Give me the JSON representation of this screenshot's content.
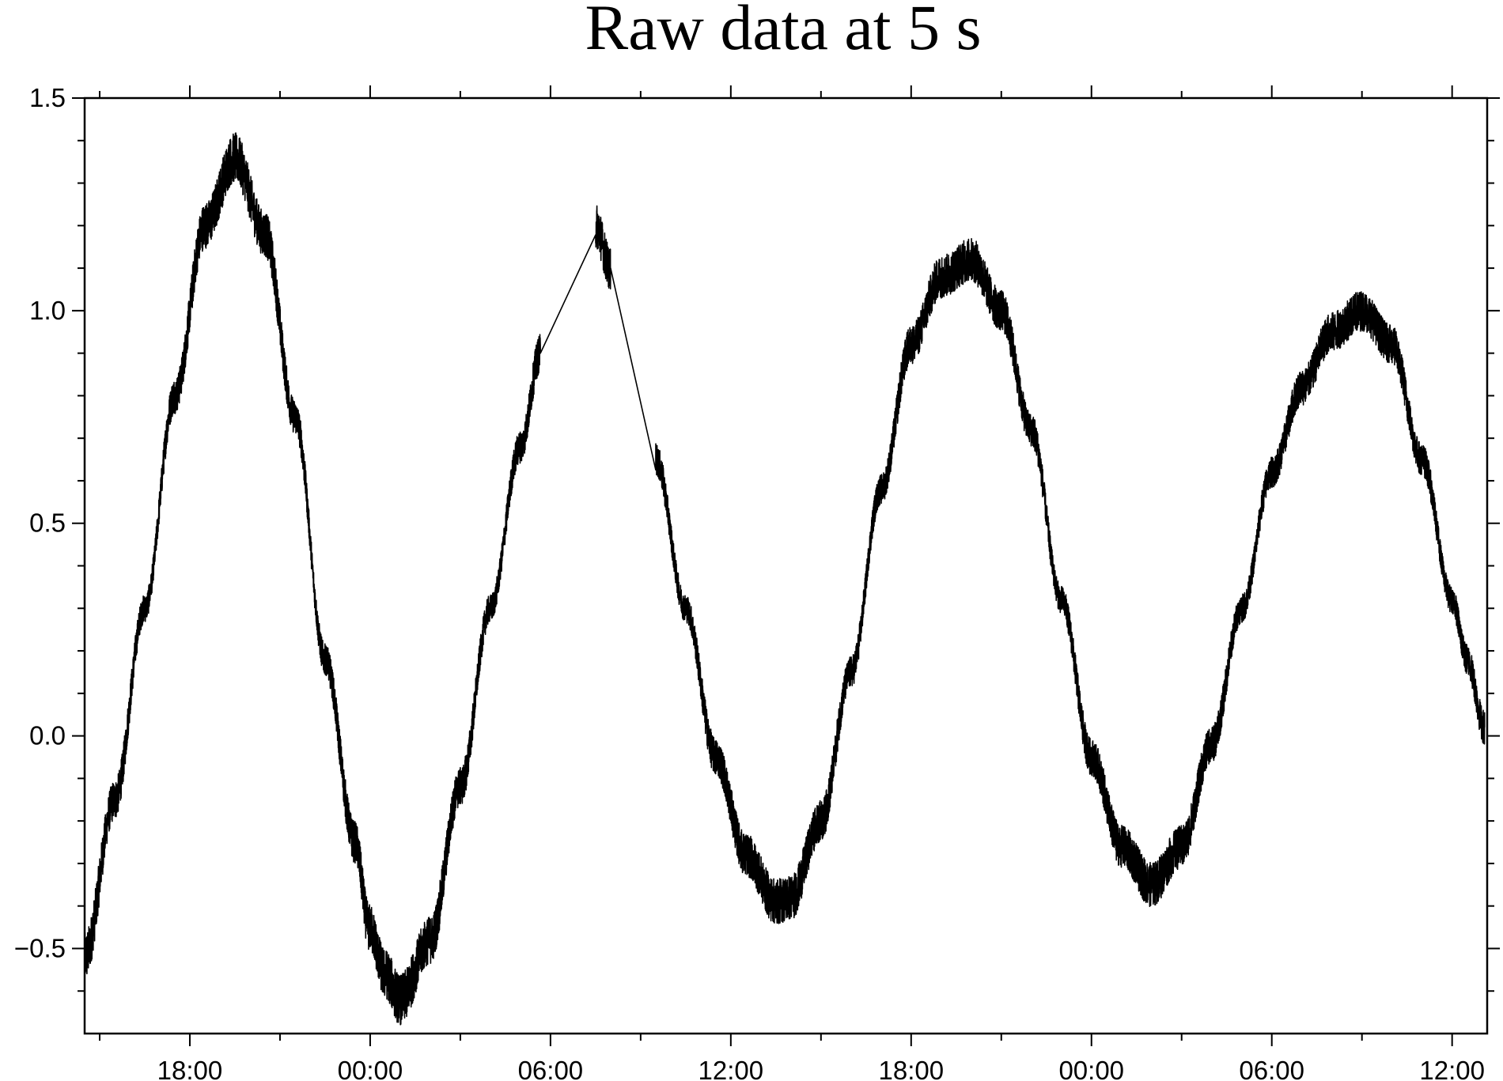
{
  "chart_data": {
    "type": "line",
    "title": "Raw data at 5 s",
    "xlabel": "",
    "ylabel": "",
    "x_axis": {
      "kind": "time",
      "start": "14:30",
      "end": "13:10",
      "major_tick_labels": [
        "18:00",
        "00:00",
        "06:00",
        "12:00",
        "18:00",
        "00:00",
        "06:00",
        "12:00"
      ],
      "major_tick_times": [
        "18:00",
        "00:00",
        "06:00",
        "12:00",
        "18:00",
        "00:00",
        "06:00",
        "12:00"
      ],
      "minor_tick_interval": "03:00"
    },
    "ylim": [
      -0.7,
      1.5
    ],
    "y_tick_labels": [
      "1.5",
      "1.0",
      "0.5",
      "0.0",
      "−0.5"
    ],
    "y_tick_values": [
      1.5,
      1.0,
      0.5,
      0.0,
      -0.5
    ],
    "y_minor_tick_interval": 0.1,
    "grid": false,
    "noise_amplitude_approx": 0.05,
    "series": [
      {
        "description": "raw samples (noisy oscillation)",
        "color": "#000000",
        "points": [
          {
            "x": "14:30",
            "y": -0.52
          },
          {
            "x": "15:30",
            "y": -0.15
          },
          {
            "x": "16:30",
            "y": 0.3
          },
          {
            "x": "17:30",
            "y": 0.8
          },
          {
            "x": "18:30",
            "y": 1.2
          },
          {
            "x": "19:30",
            "y": 1.36
          },
          {
            "x": "20:30",
            "y": 1.18
          },
          {
            "x": "21:30",
            "y": 0.75
          },
          {
            "x": "22:30",
            "y": 0.18
          },
          {
            "x": "23:30",
            "y": -0.25
          },
          {
            "x": "23:58",
            "y": -0.45
          },
          {
            "x": "00:30",
            "y": -0.56
          },
          {
            "x": "01:00",
            "y": -0.62
          },
          {
            "x": "02:00",
            "y": -0.48
          },
          {
            "x": "03:00",
            "y": -0.12
          },
          {
            "x": "04:00",
            "y": 0.3
          },
          {
            "x": "05:00",
            "y": 0.68
          },
          {
            "x": "05:40",
            "y": 0.9
          },
          {
            "x": "07:30",
            "y": 1.2
          },
          {
            "x": "08:00",
            "y": 1.1
          },
          {
            "x": "09:30",
            "y": 0.65
          },
          {
            "x": "10:30",
            "y": 0.3
          },
          {
            "x": "11:30",
            "y": -0.05
          },
          {
            "x": "12:30",
            "y": -0.28
          },
          {
            "x": "13:30",
            "y": -0.39
          },
          {
            "x": "14:00",
            "y": -0.38
          },
          {
            "x": "15:00",
            "y": -0.2
          },
          {
            "x": "16:00",
            "y": 0.15
          },
          {
            "x": "17:00",
            "y": 0.58
          },
          {
            "x": "18:00",
            "y": 0.92
          },
          {
            "x": "19:00",
            "y": 1.08
          },
          {
            "x": "20:00",
            "y": 1.12
          },
          {
            "x": "21:00",
            "y": 1.0
          },
          {
            "x": "22:00",
            "y": 0.72
          },
          {
            "x": "23:00",
            "y": 0.32
          },
          {
            "x": "00:00",
            "y": -0.05
          },
          {
            "x": "01:00",
            "y": -0.26
          },
          {
            "x": "02:00",
            "y": -0.35
          },
          {
            "x": "03:00",
            "y": -0.26
          },
          {
            "x": "04:00",
            "y": -0.02
          },
          {
            "x": "05:00",
            "y": 0.3
          },
          {
            "x": "06:00",
            "y": 0.62
          },
          {
            "x": "07:00",
            "y": 0.82
          },
          {
            "x": "08:00",
            "y": 0.95
          },
          {
            "x": "09:00",
            "y": 1.0
          },
          {
            "x": "10:00",
            "y": 0.92
          },
          {
            "x": "11:00",
            "y": 0.65
          },
          {
            "x": "12:00",
            "y": 0.32
          },
          {
            "x": "12:30",
            "y": 0.18
          },
          {
            "x": "13:05",
            "y": 0.02
          }
        ]
      }
    ]
  }
}
